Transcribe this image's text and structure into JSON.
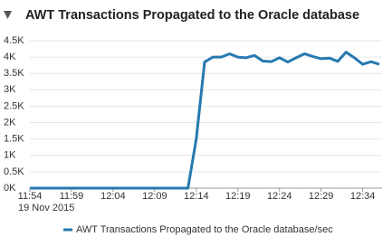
{
  "chart_data": {
    "type": "line",
    "title": "AWT Transactions Propagated to the Oracle database",
    "x_date_label": "19 Nov 2015",
    "x": [
      "2015-11-19 11:54",
      "2015-11-19 11:55",
      "2015-11-19 11:56",
      "2015-11-19 11:57",
      "2015-11-19 11:58",
      "2015-11-19 11:59",
      "2015-11-19 12:00",
      "2015-11-19 12:01",
      "2015-11-19 12:02",
      "2015-11-19 12:03",
      "2015-11-19 12:04",
      "2015-11-19 12:05",
      "2015-11-19 12:06",
      "2015-11-19 12:07",
      "2015-11-19 12:08",
      "2015-11-19 12:09",
      "2015-11-19 12:10",
      "2015-11-19 12:11",
      "2015-11-19 12:12",
      "2015-11-19 12:13",
      "2015-11-19 12:14",
      "2015-11-19 12:15",
      "2015-11-19 12:16",
      "2015-11-19 12:17",
      "2015-11-19 12:18",
      "2015-11-19 12:19",
      "2015-11-19 12:20",
      "2015-11-19 12:21",
      "2015-11-19 12:22",
      "2015-11-19 12:23",
      "2015-11-19 12:24",
      "2015-11-19 12:25",
      "2015-11-19 12:26",
      "2015-11-19 12:27",
      "2015-11-19 12:28",
      "2015-11-19 12:29",
      "2015-11-19 12:30",
      "2015-11-19 12:31",
      "2015-11-19 12:32",
      "2015-11-19 12:33",
      "2015-11-19 12:34",
      "2015-11-19 12:35",
      "2015-11-19 12:36"
    ],
    "series": [
      {
        "name": "AWT Transactions Propagated to the Oracle database/sec",
        "color": "#2679b0",
        "values": [
          0,
          0,
          0,
          0,
          0,
          0,
          0,
          0,
          0,
          0,
          0,
          0,
          0,
          0,
          0,
          0,
          0,
          0,
          0,
          0,
          1.5,
          3.85,
          4.0,
          4.0,
          4.1,
          4.0,
          3.98,
          4.05,
          3.88,
          3.86,
          3.98,
          3.85,
          3.98,
          4.1,
          4.02,
          3.95,
          3.97,
          3.87,
          4.15,
          3.98,
          3.78,
          3.86,
          3.78
        ]
      }
    ],
    "xlim": [
      "2015-11-19 11:54",
      "2015-11-19 12:36"
    ],
    "xticks": [
      {
        "value": "2015-11-19 11:54",
        "label": "11:54"
      },
      {
        "value": "2015-11-19 11:59",
        "label": "11:59"
      },
      {
        "value": "2015-11-19 12:04",
        "label": "12:04"
      },
      {
        "value": "2015-11-19 12:09",
        "label": "12:09"
      },
      {
        "value": "2015-11-19 12:14",
        "label": "12:14"
      },
      {
        "value": "2015-11-19 12:19",
        "label": "12:19"
      },
      {
        "value": "2015-11-19 12:24",
        "label": "12:24"
      },
      {
        "value": "2015-11-19 12:29",
        "label": "12:29"
      },
      {
        "value": "2015-11-19 12:34",
        "label": "12:34"
      }
    ],
    "ylim": [
      0,
      4.5
    ],
    "yticks": [
      {
        "value": 0,
        "label": "0K"
      },
      {
        "value": 0.5,
        "label": "0.5K"
      },
      {
        "value": 1,
        "label": "1K"
      },
      {
        "value": 1.5,
        "label": "1.5K"
      },
      {
        "value": 2,
        "label": "2K"
      },
      {
        "value": 2.5,
        "label": "2.5K"
      },
      {
        "value": 3,
        "label": "3K"
      },
      {
        "value": 3.5,
        "label": "3.5K"
      },
      {
        "value": 4,
        "label": "4K"
      },
      {
        "value": 4.5,
        "label": "4.5K"
      }
    ],
    "grid": true
  }
}
